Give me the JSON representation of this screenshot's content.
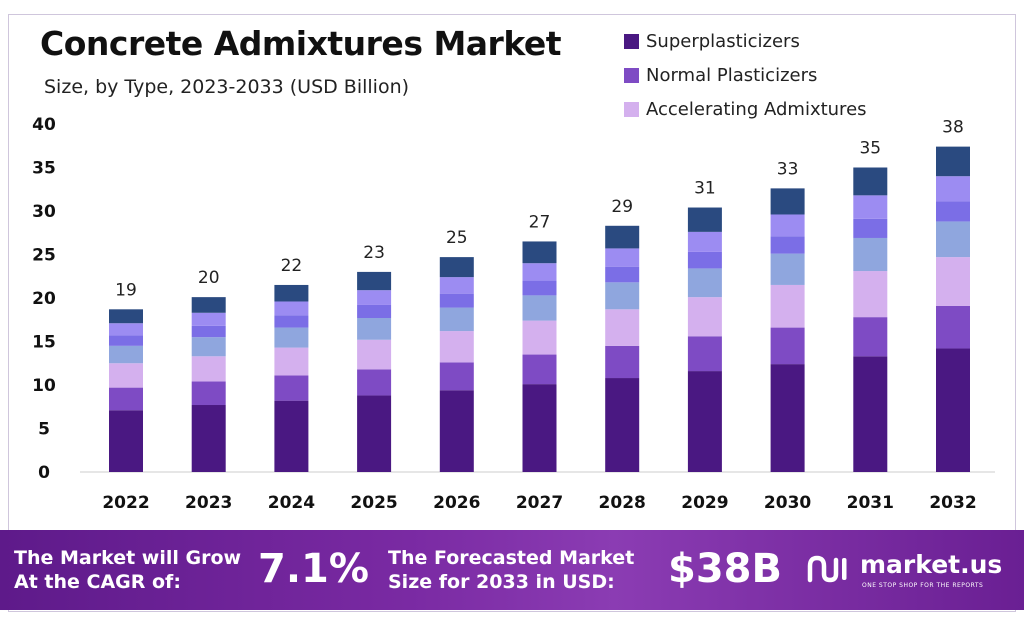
{
  "header": {
    "title": "Concrete Admixtures Market",
    "subtitle": "Size, by Type, 2023-2033 (USD Billion)"
  },
  "legend": [
    {
      "label": "Superplasticizers",
      "color": "#4a1882"
    },
    {
      "label": "Normal Plasticizers",
      "color": "#7e4bc4"
    },
    {
      "label": "Accelerating Admixtures",
      "color": "#d4b0ee"
    }
  ],
  "chart_data": {
    "type": "bar",
    "stacked": true,
    "categories": [
      "2022",
      "2023",
      "2024",
      "2025",
      "2026",
      "2027",
      "2028",
      "2029",
      "2030",
      "2031",
      "2032"
    ],
    "ylim": [
      0,
      40
    ],
    "yticks": [
      0,
      5,
      10,
      15,
      20,
      25,
      30,
      35,
      40
    ],
    "totals_labels": [
      "19",
      "20",
      "22",
      "23",
      "25",
      "27",
      "29",
      "31",
      "33",
      "35",
      "38"
    ],
    "series": [
      {
        "name": "Superplasticizers",
        "color": "#4a1882",
        "values": [
          7.1,
          7.7,
          8.2,
          8.8,
          9.4,
          10.1,
          10.8,
          11.6,
          12.4,
          13.3,
          14.2
        ]
      },
      {
        "name": "Normal Plasticizers",
        "color": "#7e4bc4",
        "values": [
          2.6,
          2.7,
          2.9,
          3.0,
          3.2,
          3.4,
          3.7,
          4.0,
          4.2,
          4.5,
          4.9
        ]
      },
      {
        "color": "#d4b0ee",
        "values": [
          2.8,
          2.9,
          3.2,
          3.4,
          3.6,
          3.9,
          4.2,
          4.5,
          4.9,
          5.3,
          5.6
        ]
      },
      {
        "color": "#8fa6de",
        "values": [
          2.0,
          2.2,
          2.3,
          2.5,
          2.7,
          2.9,
          3.1,
          3.3,
          3.6,
          3.8,
          4.1
        ]
      },
      {
        "color": "#7b6ee6",
        "values": [
          1.2,
          1.3,
          1.4,
          1.5,
          1.6,
          1.7,
          1.8,
          1.9,
          2.0,
          2.2,
          2.3
        ]
      },
      {
        "color": "#9c8cf2",
        "values": [
          1.4,
          1.5,
          1.6,
          1.7,
          1.9,
          2.0,
          2.1,
          2.3,
          2.5,
          2.7,
          2.9
        ]
      },
      {
        "color": "#2a4a80",
        "values": [
          1.6,
          1.8,
          1.9,
          2.1,
          2.3,
          2.5,
          2.6,
          2.8,
          3.0,
          3.2,
          3.4
        ]
      }
    ]
  },
  "footer": {
    "cagr_text": "The Market will Grow At the CAGR of:",
    "cagr_value": "7.1%",
    "forecast_text": "The Forecasted Market Size for 2033 in USD:",
    "forecast_value": "$38B",
    "brand": "market.us",
    "tagline": "ONE STOP SHOP FOR THE REPORTS"
  }
}
